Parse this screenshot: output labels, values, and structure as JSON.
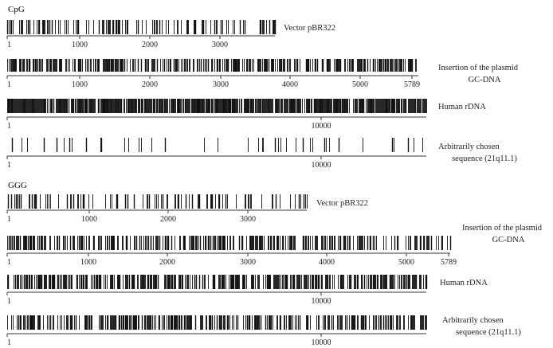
{
  "sections": [
    {
      "title": "CpG",
      "tracks": [
        {
          "label_lines": [
            "Vector pBR322"
          ],
          "density": 0.32,
          "seed": 11,
          "ticks": [
            "1",
            "1000",
            "2000",
            "3000"
          ]
        },
        {
          "label_lines": [
            "Insertion of the plasmid",
            "GC-DNA"
          ],
          "density": 0.55,
          "seed": 23,
          "ticks": [
            "1",
            "1000",
            "2000",
            "3000",
            "4000",
            "5000",
            "5789"
          ]
        },
        {
          "label_lines": [
            "Human rDNA"
          ],
          "density": 0.85,
          "seed": 37,
          "ticks": [
            "1",
            "10000"
          ]
        },
        {
          "label_lines": [
            "Arbitrarily chosen",
            "sequence (21q11.1)"
          ],
          "density": 0.08,
          "seed": 41,
          "ticks": [
            "1",
            "10000"
          ]
        }
      ]
    },
    {
      "title": "GGG",
      "tracks": [
        {
          "label_lines": [
            "Vector pBR322"
          ],
          "density": 0.22,
          "seed": 53,
          "ticks": [
            "1",
            "1000",
            "2000",
            "3000"
          ]
        },
        {
          "label_lines": [
            "Insertion of the plasmid",
            "GC-DNA"
          ],
          "density": 0.45,
          "seed": 67,
          "ticks": [
            "1",
            "1000",
            "2000",
            "3000",
            "4000",
            "5000",
            "5789"
          ]
        },
        {
          "label_lines": [
            "Human rDNA"
          ],
          "density": 0.6,
          "seed": 71,
          "ticks": [
            "1",
            "10000"
          ]
        },
        {
          "label_lines": [
            "Arbitrarily chosen",
            "sequence (21q11.1)"
          ],
          "density": 0.5,
          "seed": 83,
          "ticks": [
            "1",
            "10000"
          ]
        }
      ]
    }
  ],
  "colors": {
    "bar": "#111111",
    "axis": "#333333",
    "text": "#222222"
  }
}
